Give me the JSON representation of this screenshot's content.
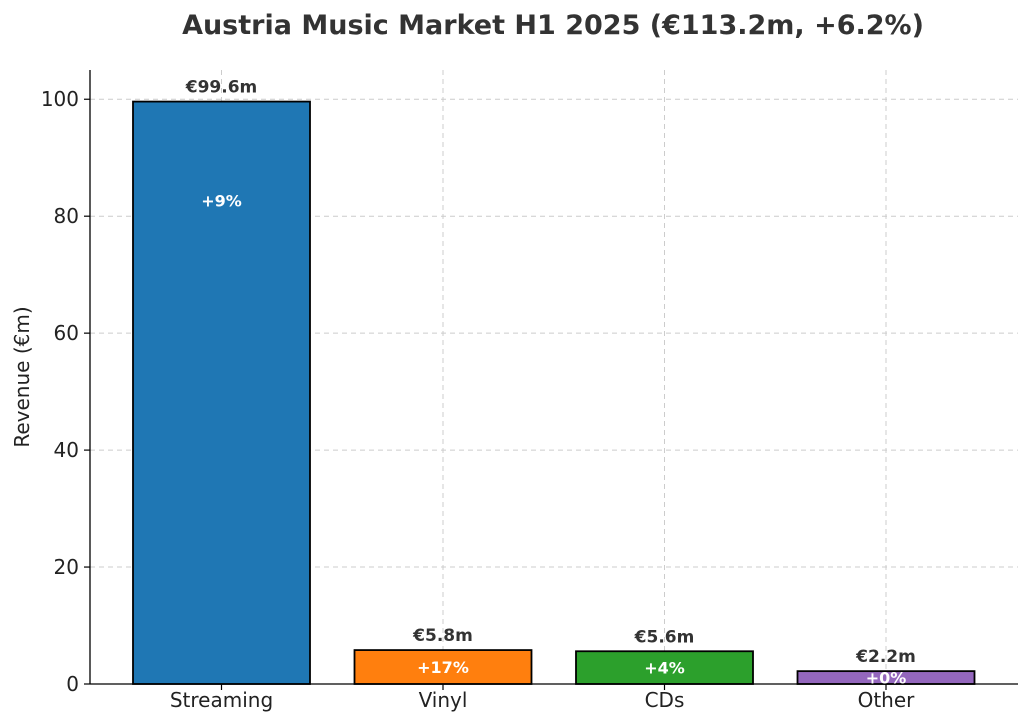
{
  "chart_data": {
    "type": "bar",
    "title": "Austria Music Market H1 2025 (€113.2m, +6.2%)",
    "xlabel": "",
    "ylabel": "Revenue (€m)",
    "ylim": [
      0,
      105
    ],
    "yticks": [
      0,
      20,
      40,
      60,
      80,
      100
    ],
    "grid": true,
    "categories": [
      "Streaming",
      "Vinyl",
      "CDs",
      "Other"
    ],
    "values": [
      99.6,
      5.8,
      5.6,
      2.2
    ],
    "value_labels": [
      "€99.6m",
      "€5.8m",
      "€5.6m",
      "€2.2m"
    ],
    "growth_labels": [
      "+9%",
      "+17%",
      "+4%",
      "+0%"
    ],
    "colors": [
      "#1f77b4",
      "#ff7f0e",
      "#2ca02c",
      "#9467bd"
    ]
  }
}
